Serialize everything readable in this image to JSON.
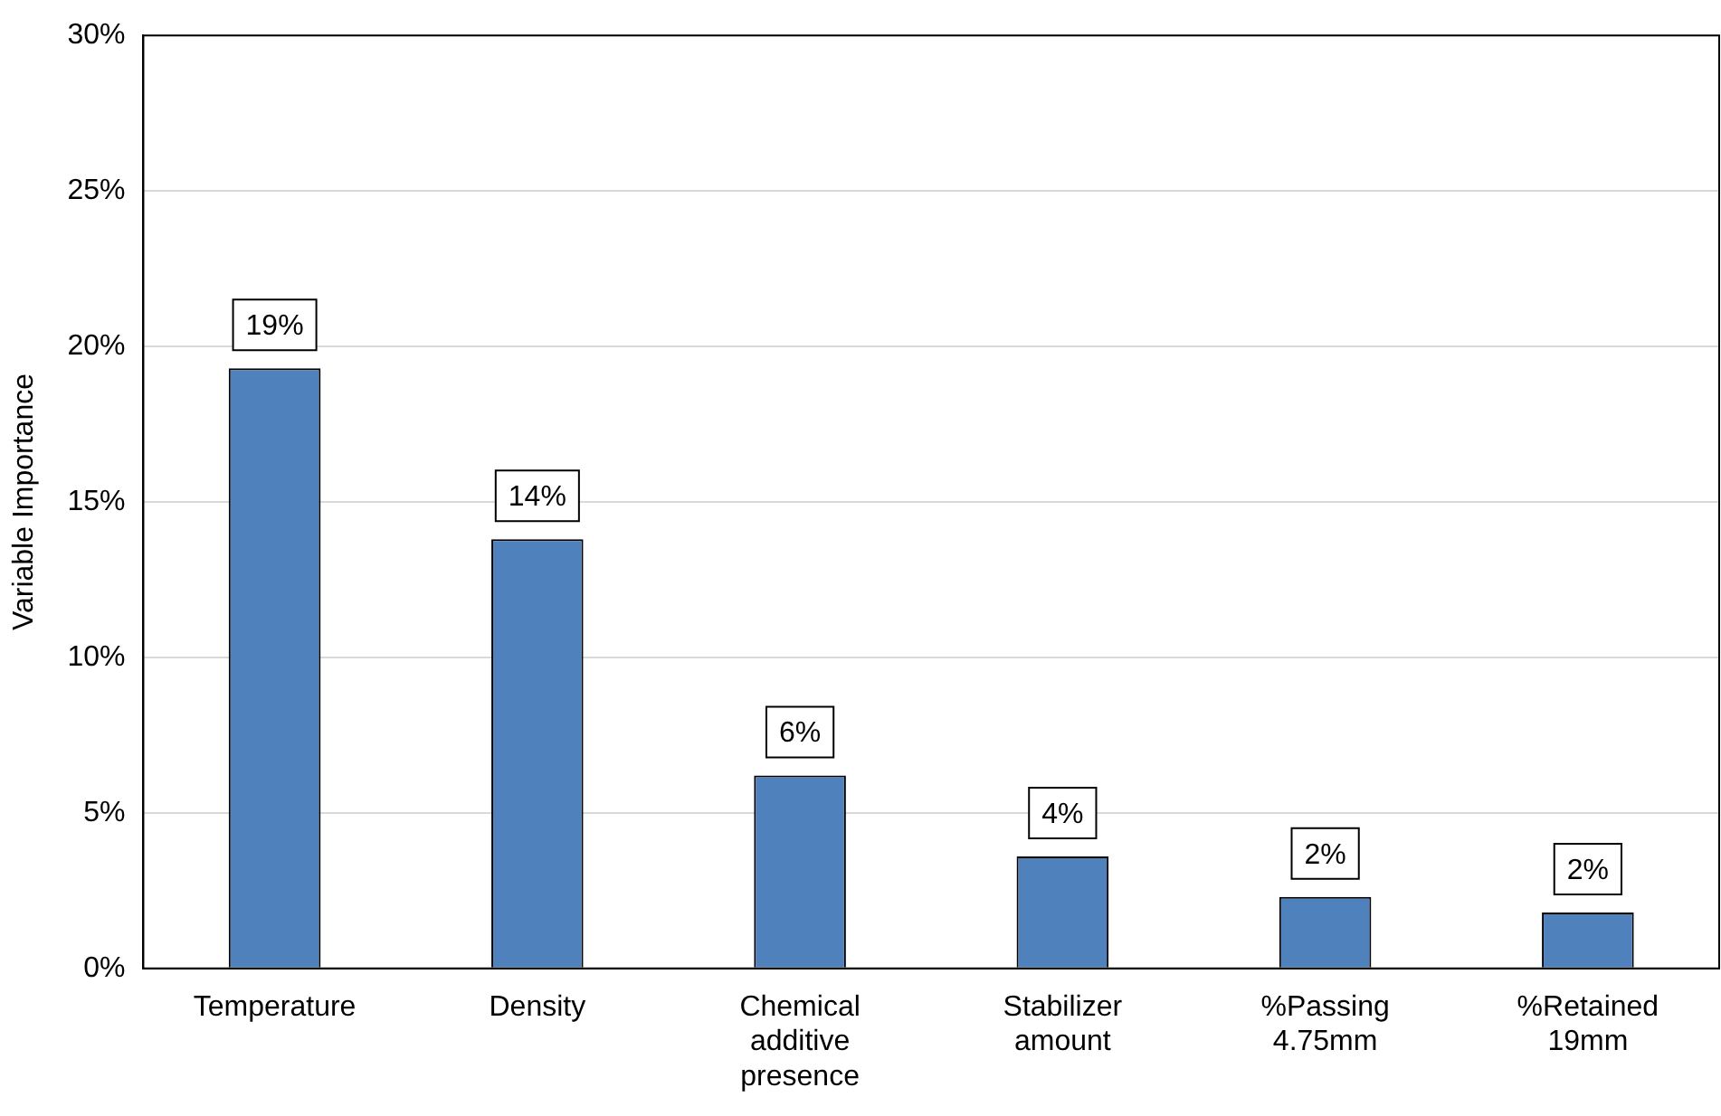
{
  "chart_data": {
    "type": "bar",
    "ylabel": "Variable Importance",
    "categories": [
      "Temperature",
      "Density",
      "Chemical additive presence",
      "Stabilizer amount",
      "%Passing 4.75mm",
      "%Retained 19mm"
    ],
    "values": [
      19.3,
      13.8,
      6.2,
      3.6,
      2.3,
      1.8
    ],
    "value_labels": [
      "19%",
      "14%",
      "6%",
      "4%",
      "2%",
      "2%"
    ],
    "color": "#4f81bd",
    "ylim": [
      0,
      30
    ],
    "yticks": [
      {
        "value": 0,
        "label": "0%"
      },
      {
        "value": 5,
        "label": "5%"
      },
      {
        "value": 10,
        "label": "10%"
      },
      {
        "value": 15,
        "label": "15%"
      },
      {
        "value": 20,
        "label": "20%"
      },
      {
        "value": 25,
        "label": "25%"
      },
      {
        "value": 30,
        "label": "30%"
      }
    ],
    "grid": "y",
    "legend": false
  }
}
